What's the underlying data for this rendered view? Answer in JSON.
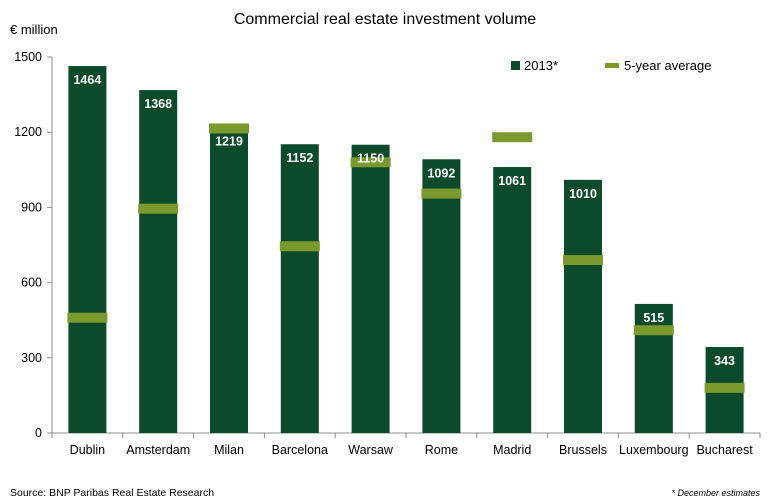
{
  "chart_data": {
    "type": "bar",
    "title": "Commercial real estate investment volume",
    "ylabel": "€ million",
    "xlabel": "",
    "ylim": [
      0,
      1500
    ],
    "yticks": [
      0,
      300,
      600,
      900,
      1200,
      1500
    ],
    "grid": false,
    "legend_position": "top-right",
    "categories": [
      "Dublin",
      "Amsterdam",
      "Milan",
      "Barcelona",
      "Warsaw",
      "Rome",
      "Madrid",
      "Brussels",
      "Luxembourg",
      "Bucharest"
    ],
    "series": [
      {
        "name": "2013*",
        "type": "bar",
        "color": "#0b4a2b",
        "values": [
          1464,
          1368,
          1219,
          1152,
          1150,
          1092,
          1061,
          1010,
          515,
          343
        ],
        "data_labels": [
          "1464",
          "1368",
          "1219",
          "1152",
          "1150",
          "1092",
          "1061",
          "1010",
          "515",
          "343"
        ]
      },
      {
        "name": "5-year average",
        "type": "marker",
        "color": "#7a9a2e",
        "values": [
          460,
          895,
          1215,
          745,
          1080,
          955,
          1180,
          690,
          410,
          180
        ]
      }
    ],
    "source": "Source: BNP Paribas Real Estate Research",
    "footnote": "* December estimates"
  }
}
